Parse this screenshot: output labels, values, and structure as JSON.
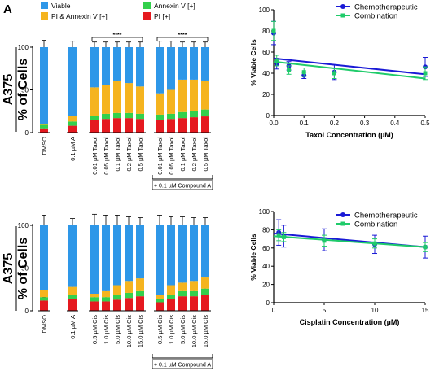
{
  "panel_label": "A",
  "colors": {
    "viable": "#2E97E8",
    "pi_annexin": "#F5B41F",
    "annexin": "#33D04C",
    "pi": "#E5191F",
    "chemo": "#1A1AD6",
    "combo": "#1FCB6A"
  },
  "legend_top": [
    {
      "label": "Viable",
      "key": "viable"
    },
    {
      "label": "Annexin V [+]",
      "key": "annexin"
    },
    {
      "label": "PI & Annexin V [+]",
      "key": "pi_annexin"
    },
    {
      "label": "PI [+]",
      "key": "pi"
    }
  ],
  "chart_data": [
    {
      "type": "bar",
      "stacked": true,
      "cell_line": "A375",
      "ylabel": "% of Cells",
      "ylim": [
        0,
        100
      ],
      "yticks": [
        0,
        50,
        100
      ],
      "categories": [
        "DMSO",
        "0.1 µM A",
        "0.01 µM Taxol",
        "0.05 µM Taxol",
        "0.1 µM Taxol",
        "0.2 µM Taxol",
        "0.5 µM Taxol",
        "0.01 µM Taxol",
        "0.05 µM Taxol",
        "0.1 µM Taxol",
        "0.2 µM Taxol",
        "0.5 µM Taxol"
      ],
      "groups": [
        [
          0
        ],
        [
          1
        ],
        [
          2,
          3,
          4,
          5,
          6
        ],
        [
          7,
          8,
          9,
          10,
          11
        ]
      ],
      "series": [
        {
          "name": "PI [+]",
          "color_key": "pi",
          "values": [
            5,
            8,
            15,
            16,
            17,
            17,
            16,
            15,
            16,
            17,
            18,
            19
          ]
        },
        {
          "name": "Annexin V [+]",
          "color_key": "annexin",
          "values": [
            4,
            5,
            5,
            6,
            6,
            6,
            6,
            6,
            6,
            7,
            7,
            8
          ]
        },
        {
          "name": "PI & Annexin V [+]",
          "color_key": "pi_annexin",
          "values": [
            1,
            7,
            33,
            34,
            38,
            35,
            32,
            25,
            28,
            38,
            37,
            34
          ]
        },
        {
          "name": "Viable",
          "color_key": "viable",
          "values": [
            90,
            80,
            47,
            44,
            39,
            42,
            46,
            54,
            50,
            38,
            38,
            39
          ]
        }
      ],
      "errors": [
        [
          2,
          1,
          3,
          3,
          3,
          4,
          3,
          2,
          3,
          3,
          3,
          3
        ],
        [
          2,
          2,
          3,
          3,
          3,
          3,
          3,
          3,
          3,
          3,
          3,
          3
        ],
        [
          2,
          3,
          4,
          5,
          5,
          5,
          5,
          4,
          4,
          5,
          5,
          5
        ],
        [
          8,
          7,
          6,
          6,
          6,
          6,
          6,
          7,
          7,
          6,
          6,
          6
        ]
      ],
      "significance": [
        {
          "label": "****",
          "from": 2,
          "to": 6
        },
        {
          "label": "****",
          "from": 7,
          "to": 11
        }
      ],
      "compound_label": "+ 0.1 µM Compound A",
      "compound_range": [
        7,
        11
      ]
    },
    {
      "type": "line",
      "xlabel": "Taxol Concentration (µM)",
      "ylabel": "% Viable Cells",
      "xlim": [
        0,
        0.5
      ],
      "ylim": [
        0,
        100
      ],
      "xticks": [
        0.0,
        0.1,
        0.2,
        0.3,
        0.4,
        0.5
      ],
      "yticks": [
        0,
        20,
        40,
        60,
        80,
        100
      ],
      "xtick_labels": [
        "0.0",
        "0.1",
        "0.2",
        "0.3",
        "0.4",
        "0.5"
      ],
      "series": [
        {
          "name": "Chemotherapeutic",
          "color_key": "chemo",
          "marker": "circle",
          "points": [
            [
              0.0,
              78
            ],
            [
              0.01,
              49
            ],
            [
              0.05,
              47
            ],
            [
              0.1,
              38
            ],
            [
              0.2,
              41
            ],
            [
              0.5,
              46
            ]
          ],
          "errors": [
            11,
            5,
            4,
            3,
            7,
            9
          ],
          "fit": [
            [
              0.0,
              54
            ],
            [
              0.5,
              39
            ]
          ]
        },
        {
          "name": "Combination",
          "color_key": "combo",
          "marker": "square",
          "points": [
            [
              0.0,
              80
            ],
            [
              0.01,
              52
            ],
            [
              0.05,
              43
            ],
            [
              0.1,
              41
            ],
            [
              0.2,
              40
            ],
            [
              0.5,
              40
            ]
          ],
          "errors": [
            9,
            5,
            4,
            4,
            5,
            6
          ],
          "fit": [
            [
              0.0,
              51
            ],
            [
              0.5,
              35
            ]
          ]
        }
      ]
    },
    {
      "type": "bar",
      "stacked": true,
      "cell_line": "A375",
      "ylabel": "% of Cells",
      "ylim": [
        0,
        100
      ],
      "yticks": [
        0,
        50,
        100
      ],
      "categories": [
        "DMSO",
        "0.1 µM A",
        "0.5 µM Cis",
        "1.0 µM Cis",
        "5.0 µM Cis",
        "10.0 µM Cis",
        "15.0 µM Cis",
        "0.5 µM Cis",
        "1.0 µM Cis",
        "5.0 µM Cis",
        "10.0 µM Cis",
        "15.0 µM Cis"
      ],
      "groups": [
        [
          0
        ],
        [
          1
        ],
        [
          2,
          3,
          4,
          5,
          6
        ],
        [
          7,
          8,
          9,
          10,
          11
        ]
      ],
      "series": [
        {
          "name": "PI [+]",
          "color_key": "pi",
          "values": [
            12,
            14,
            11,
            11,
            13,
            15,
            17,
            10,
            14,
            17,
            17,
            19
          ]
        },
        {
          "name": "Annexin V [+]",
          "color_key": "annexin",
          "values": [
            4,
            5,
            5,
            5,
            6,
            6,
            6,
            4,
            5,
            6,
            6,
            7
          ]
        },
        {
          "name": "PI & Annexin V [+]",
          "color_key": "pi_annexin",
          "values": [
            8,
            9,
            4,
            7,
            11,
            14,
            15,
            5,
            11,
            10,
            12,
            13
          ]
        },
        {
          "name": "Viable",
          "color_key": "viable",
          "values": [
            76,
            72,
            80,
            77,
            70,
            65,
            62,
            81,
            70,
            67,
            65,
            61
          ]
        }
      ],
      "errors": [
        [
          4,
          4,
          3,
          3,
          3,
          4,
          4,
          3,
          3,
          3,
          4,
          4
        ],
        [
          2,
          2,
          2,
          2,
          2,
          2,
          2,
          2,
          2,
          2,
          2,
          2
        ],
        [
          3,
          3,
          3,
          3,
          4,
          4,
          4,
          3,
          3,
          3,
          3,
          4
        ],
        [
          12,
          8,
          13,
          12,
          12,
          10,
          9,
          12,
          10,
          10,
          9,
          9
        ]
      ],
      "significance": [],
      "compound_label": "+ 0.1 µM Compound A",
      "compound_range": [
        7,
        11
      ]
    },
    {
      "type": "line",
      "xlabel": "Cisplatin Concentration (µM)",
      "ylabel": "% Viable Cells",
      "xlim": [
        0,
        15
      ],
      "ylim": [
        0,
        100
      ],
      "xticks": [
        0,
        5,
        10,
        15
      ],
      "yticks": [
        0,
        20,
        40,
        60,
        80,
        100
      ],
      "xtick_labels": [
        "0",
        "5",
        "10",
        "15"
      ],
      "series": [
        {
          "name": "Chemotherapeutic",
          "color_key": "chemo",
          "marker": "circle",
          "points": [
            [
              0.5,
              77
            ],
            [
              1.0,
              73
            ],
            [
              5.0,
              69
            ],
            [
              10.0,
              64
            ],
            [
              15.0,
              61
            ]
          ],
          "errors": [
            14,
            12,
            12,
            10,
            12
          ],
          "fit": [
            [
              0,
              76
            ],
            [
              15,
              61
            ]
          ]
        },
        {
          "name": "Combination",
          "color_key": "combo",
          "marker": "square",
          "points": [
            [
              0.5,
              74
            ],
            [
              1.0,
              72
            ],
            [
              5.0,
              68
            ],
            [
              10.0,
              65
            ],
            [
              15.0,
              61
            ]
          ],
          "errors": [
            6,
            5,
            6,
            5,
            5
          ],
          "fit": [
            [
              0,
              73
            ],
            [
              15,
              61
            ]
          ]
        }
      ]
    }
  ]
}
